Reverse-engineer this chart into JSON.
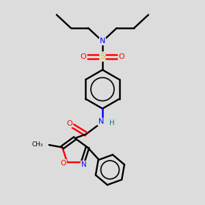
{
  "bg_color": "#dcdcdc",
  "bond_color": "#000000",
  "bond_width": 1.8,
  "figsize": [
    3.0,
    3.0
  ],
  "dpi": 100,
  "atom_colors": {
    "N": "#0000ff",
    "O": "#ff0000",
    "S": "#cccc00",
    "C": "#000000",
    "H": "#008080"
  },
  "scale": 10
}
